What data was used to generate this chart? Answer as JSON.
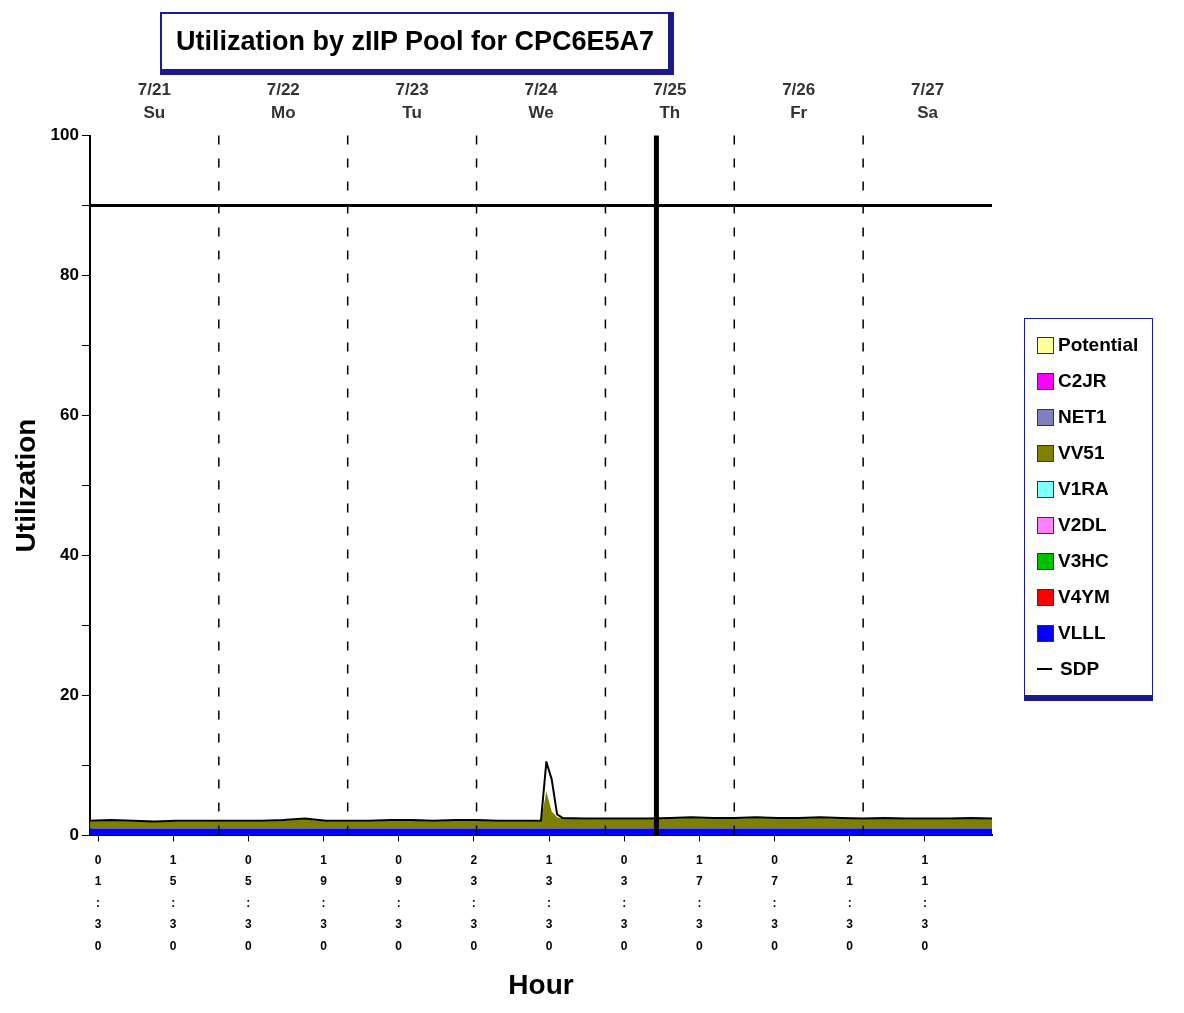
{
  "chart_data": {
    "type": "area",
    "title": "Utilization by zIIP Pool for CPC6E5A7",
    "xlabel": "Hour",
    "ylabel": "Utilization",
    "stacked": true,
    "legend": "right",
    "grid": false,
    "xlim": [
      "--07-21T00:00",
      "--07-28T00:00"
    ],
    "ylim": [
      0,
      100
    ],
    "xticks": [
      {
        "value": "--07-21T01:30",
        "label": "01:30"
      },
      {
        "value": "--07-21T15:30",
        "label": "15:30"
      },
      {
        "value": "--07-22T05:30",
        "label": "05:30"
      },
      {
        "value": "--07-22T19:30",
        "label": "19:30"
      },
      {
        "value": "--07-23T09:30",
        "label": "09:30"
      },
      {
        "value": "--07-23T23:30",
        "label": "23:30"
      },
      {
        "value": "--07-24T13:30",
        "label": "13:30"
      },
      {
        "value": "--07-25T03:30",
        "label": "03:30"
      },
      {
        "value": "--07-25T17:30",
        "label": "17:30"
      },
      {
        "value": "--07-26T07:30",
        "label": "07:30"
      },
      {
        "value": "--07-26T21:30",
        "label": "21:30"
      },
      {
        "value": "--07-27T11:30",
        "label": "11:30"
      }
    ],
    "x2lim": [
      "--07-21T00:00",
      "--07-28T00:00"
    ],
    "x2ticks": [
      {
        "value": "--07-21T12:00",
        "label": "7/21 Su"
      },
      {
        "value": "--07-22T12:00",
        "label": "7/22 Mo"
      },
      {
        "value": "--07-23T12:00",
        "label": "7/23 Tu"
      },
      {
        "value": "--07-24T12:00",
        "label": "7/24 We"
      },
      {
        "value": "--07-25T12:00",
        "label": "7/25 Th"
      },
      {
        "value": "--07-26T12:00",
        "label": "7/26 Fr"
      },
      {
        "value": "--07-27T12:00",
        "label": "7/27 Sa"
      }
    ],
    "yticks": [
      0,
      {
        "value": 10,
        "label": null
      },
      20,
      {
        "value": 30,
        "label": null
      },
      40,
      {
        "value": 50,
        "label": null
      },
      60,
      {
        "value": 70,
        "label": null
      },
      80,
      {
        "value": 90,
        "label": null
      },
      100
    ],
    "x": [
      "--07-21T00:00",
      "--07-21T04:00",
      "--07-21T08:00",
      "--07-21T12:00",
      "--07-21T16:00",
      "--07-21T20:00",
      "--07-22T00:00",
      "--07-22T04:00",
      "--07-22T08:00",
      "--07-22T12:00",
      "--07-22T16:00",
      "--07-22T20:00",
      "--07-23T00:00",
      "--07-23T04:00",
      "--07-23T08:00",
      "--07-23T12:00",
      "--07-23T16:00",
      "--07-23T20:00",
      "--07-24T00:00",
      "--07-24T04:00",
      "--07-24T08:00",
      "--07-24T12:00",
      "--07-24T13:00",
      "--07-24T14:00",
      "--07-24T15:00",
      "--07-24T16:00",
      "--07-24T20:00",
      "--07-25T00:00",
      "--07-25T04:00",
      "--07-25T08:00",
      "--07-25T12:00",
      "--07-25T16:00",
      "--07-25T20:00",
      "--07-26T00:00",
      "--07-26T04:00",
      "--07-26T08:00",
      "--07-26T12:00",
      "--07-26T16:00",
      "--07-26T20:00",
      "--07-27T00:00",
      "--07-27T04:00",
      "--07-27T08:00",
      "--07-27T12:00",
      "--07-27T16:00",
      "--07-27T20:00",
      "--07-28T00:00"
    ],
    "series": [
      {
        "name": "VLLL",
        "color": "#0000ff",
        "values": [
          1,
          1,
          1,
          1,
          1,
          1,
          1,
          1,
          1,
          1,
          1,
          1,
          1,
          1,
          1,
          1,
          1,
          1,
          1,
          1,
          1,
          1,
          1,
          1,
          1,
          1,
          1,
          1,
          1,
          1,
          1,
          1,
          1,
          1,
          1,
          1,
          1,
          1,
          1,
          1,
          1,
          1,
          1,
          1,
          1,
          1
        ]
      },
      {
        "name": "V4YM",
        "color": "#ff0000",
        "values": [
          null,
          null,
          null,
          null,
          null,
          null,
          null,
          null,
          null,
          null,
          null,
          null,
          null,
          null,
          null,
          null,
          null,
          null,
          null,
          null,
          null,
          null,
          null,
          null,
          null,
          null,
          null,
          null,
          null,
          null,
          null,
          null,
          null,
          null,
          null,
          null,
          null,
          null,
          null,
          null,
          null,
          null,
          null,
          null,
          null,
          null
        ]
      },
      {
        "name": "V3HC",
        "color": "#00c000",
        "values": [
          null,
          null,
          null,
          null,
          null,
          null,
          null,
          null,
          null,
          null,
          null,
          null,
          null,
          null,
          null,
          null,
          null,
          null,
          null,
          null,
          null,
          null,
          null,
          null,
          null,
          null,
          null,
          null,
          null,
          null,
          null,
          null,
          null,
          null,
          null,
          null,
          null,
          null,
          null,
          null,
          null,
          null,
          null,
          null,
          null,
          null
        ]
      },
      {
        "name": "V2DL",
        "color": "#ff80ff",
        "values": [
          null,
          null,
          null,
          null,
          null,
          null,
          null,
          null,
          null,
          null,
          null,
          null,
          null,
          null,
          null,
          null,
          null,
          null,
          null,
          null,
          null,
          null,
          null,
          null,
          null,
          null,
          null,
          null,
          null,
          null,
          null,
          null,
          null,
          null,
          null,
          null,
          null,
          null,
          null,
          null,
          null,
          null,
          null,
          null,
          null,
          null
        ]
      },
      {
        "name": "V1RA",
        "color": "#80ffff",
        "values": [
          null,
          null,
          null,
          null,
          null,
          null,
          null,
          null,
          null,
          null,
          null,
          null,
          null,
          null,
          null,
          null,
          null,
          null,
          null,
          null,
          null,
          null,
          null,
          null,
          null,
          null,
          null,
          null,
          null,
          null,
          null,
          null,
          null,
          null,
          null,
          null,
          null,
          null,
          null,
          null,
          null,
          null,
          null,
          null,
          null,
          null
        ]
      },
      {
        "name": "VV51",
        "color": "#808000",
        "values": [
          1.0,
          1.1,
          1.0,
          0.9,
          1.0,
          1.0,
          1.0,
          1.0,
          1.0,
          1.1,
          1.3,
          1.0,
          1.0,
          1.0,
          1.1,
          1.1,
          1.0,
          1.1,
          1.1,
          1.0,
          1.0,
          1.0,
          5.3,
          2.4,
          1.6,
          1.4,
          1.3,
          1.3,
          1.3,
          1.3,
          1.4,
          1.5,
          1.4,
          1.4,
          1.5,
          1.4,
          1.4,
          1.5,
          1.4,
          1.3,
          1.4,
          1.3,
          1.3,
          1.3,
          1.4,
          1.3
        ]
      },
      {
        "name": "NET1",
        "color": "#8080c0",
        "values": [
          null,
          null,
          null,
          null,
          null,
          null,
          null,
          null,
          null,
          null,
          null,
          null,
          null,
          null,
          null,
          null,
          null,
          null,
          null,
          null,
          null,
          null,
          null,
          null,
          null,
          null,
          null,
          null,
          null,
          null,
          null,
          null,
          null,
          null,
          null,
          null,
          null,
          null,
          null,
          null,
          null,
          null,
          null,
          null,
          null,
          null
        ]
      },
      {
        "name": "C2JR",
        "color": "#ff00ff",
        "values": [
          null,
          null,
          null,
          null,
          null,
          null,
          null,
          null,
          null,
          null,
          null,
          null,
          null,
          null,
          null,
          null,
          null,
          null,
          null,
          null,
          null,
          null,
          null,
          null,
          null,
          null,
          null,
          null,
          null,
          null,
          null,
          null,
          null,
          null,
          null,
          null,
          null,
          null,
          null,
          null,
          null,
          null,
          null,
          null,
          null,
          null
        ]
      },
      {
        "name": "Potential",
        "color": "#ffff99",
        "values": [
          null,
          null,
          null,
          null,
          null,
          null,
          null,
          null,
          null,
          null,
          null,
          null,
          null,
          null,
          null,
          null,
          null,
          null,
          null,
          null,
          null,
          null,
          null,
          null,
          null,
          null,
          null,
          null,
          null,
          null,
          null,
          null,
          null,
          null,
          null,
          null,
          null,
          null,
          null,
          null,
          null,
          null,
          null,
          null,
          null,
          null
        ]
      },
      {
        "name": "SDP",
        "type": "line",
        "color": "#000000",
        "values": [
          2.1,
          2.2,
          2.1,
          2.0,
          2.1,
          2.1,
          2.1,
          2.1,
          2.1,
          2.2,
          2.4,
          2.1,
          2.1,
          2.1,
          2.2,
          2.2,
          2.1,
          2.2,
          2.2,
          2.1,
          2.1,
          2.1,
          10.5,
          8.0,
          3.0,
          2.5,
          2.4,
          2.4,
          2.4,
          2.4,
          2.5,
          2.6,
          2.5,
          2.5,
          2.6,
          2.5,
          2.5,
          2.6,
          2.5,
          2.4,
          2.5,
          2.4,
          2.4,
          2.4,
          2.5,
          2.4
        ]
      }
    ],
    "ref_lines": [
      {
        "axis": "x",
        "value": "--07-22T00:00",
        "color": "#000000",
        "line_style": "dashed"
      },
      {
        "axis": "x",
        "value": "--07-23T00:00",
        "color": "#000000",
        "line_style": "dashed"
      },
      {
        "axis": "x",
        "value": "--07-24T00:00",
        "color": "#000000",
        "line_style": "dashed"
      },
      {
        "axis": "x",
        "value": "--07-25T00:00",
        "color": "#000000",
        "line_style": "dashed"
      },
      {
        "axis": "x",
        "value": "--07-26T00:00",
        "color": "#000000",
        "line_style": "dashed"
      },
      {
        "axis": "x",
        "value": "--07-27T00:00",
        "color": "#000000",
        "line_style": "dashed"
      },
      {
        "axis": "y",
        "value": 90,
        "color": "#000000",
        "line_style": "solid"
      },
      {
        "axis": "x",
        "value": "--07-25T09:30",
        "color": "#000000",
        "line_style": "solid"
      }
    ]
  }
}
